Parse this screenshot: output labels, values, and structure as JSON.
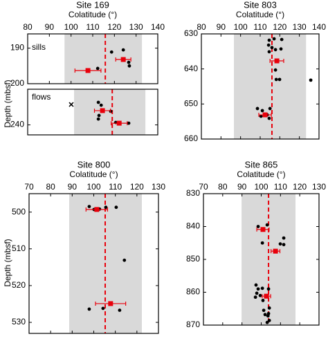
{
  "chart_data": [
    {
      "type": "scatter",
      "title": "Site 169",
      "xlabel": "Colatitude (°)",
      "ylabel": "Depth (mbsf)",
      "annotation": "sills",
      "xlim": [
        80,
        140
      ],
      "xticks": [
        80,
        90,
        100,
        110,
        120,
        130,
        140
      ],
      "ylim": [
        186,
        200
      ],
      "yticks": [
        190,
        200
      ],
      "band": [
        97,
        132.7
      ],
      "band_color": "#d9d9d9",
      "mean": 115.8,
      "mean_color": "#e8000b",
      "points": {
        "color": "#000000",
        "x": [
          118.7,
          124.1,
          126.6,
          126.9,
          112.3
        ],
        "y": [
          191.1,
          190.5,
          194,
          195,
          195.7
        ]
      },
      "means": {
        "color": "#e8000b",
        "x": [
          124.1,
          107.8
        ],
        "y": [
          193.2,
          196.3
        ],
        "xerr": [
          3.5,
          6
        ]
      }
    },
    {
      "type": "scatter",
      "annotation": "flows",
      "xlim": [
        80,
        140
      ],
      "ylim": [
        215,
        247
      ],
      "yticks": [
        240
      ],
      "band": [
        101.4,
        134.3
      ],
      "band_color": "#d9d9d9",
      "mean": 119,
      "mean_color": "#e8000b",
      "points": {
        "color": "#000000",
        "x": [
          112.6,
          113.9,
          112.9,
          112.6,
          118.3,
          120.6,
          126.6
        ],
        "y": [
          224.2,
          226.2,
          233.4,
          235.9,
          230.5,
          238.3,
          238.8
        ]
      },
      "means": {
        "color": "#e8000b",
        "x": [
          114.5,
          122.2
        ],
        "y": [
          230,
          238.8
        ],
        "xerr": [
          3.7,
          3.7
        ]
      },
      "crosses": {
        "color": "#000000",
        "x": [
          100.1
        ],
        "y": [
          225.7
        ]
      }
    },
    {
      "type": "scatter",
      "title": "Site 803",
      "xlabel": "Colatitude (°)",
      "xlim": [
        80,
        140
      ],
      "xticks": [
        80,
        90,
        100,
        110,
        120,
        130,
        140
      ],
      "ylim": [
        630,
        660
      ],
      "yticks": [
        630,
        640,
        650,
        660
      ],
      "band": [
        96.6,
        133.4
      ],
      "band_color": "#d9d9d9",
      "mean": 116,
      "mean_color": "#e8000b",
      "points": {
        "color": "#000000",
        "x": [
          114.6,
          117.1,
          121.0,
          114.3,
          116.0,
          117.8,
          120.6,
          114.6,
          117.8,
          118.2,
          119.9,
          135.8,
          108.6,
          111.1,
          115.0,
          113.6,
          110.4,
          114.6
        ],
        "y": [
          631.8,
          631.4,
          631.6,
          633.2,
          633.9,
          634.5,
          634.3,
          635.1,
          640.3,
          643.0,
          643.0,
          643.2,
          651.3,
          651.9,
          651.3,
          653.1,
          653.5,
          654.1
        ]
      },
      "means": {
        "color": "#e8000b",
        "x": [
          118.5,
          112.5
        ],
        "y": [
          637.7,
          653.1
        ],
        "xerr": [
          3.5,
          3.2
        ]
      }
    },
    {
      "type": "scatter",
      "title": "Site 800",
      "xlabel": "Colatitude (°)",
      "ylabel": "Depth (mbsf)",
      "xlim": [
        70,
        130
      ],
      "xticks": [
        70,
        80,
        90,
        100,
        110,
        120,
        130
      ],
      "ylim": [
        495,
        533
      ],
      "yticks": [
        500,
        510,
        520,
        530
      ],
      "band": [
        88.6,
        122.3
      ],
      "band_color": "#d9d9d9",
      "mean": 105.3,
      "mean_color": "#e8000b",
      "points": {
        "color": "#000000",
        "x": [
          97.9,
          100.1,
          102.7,
          105.6,
          110.4,
          114.2,
          97.9,
          104.3,
          112.0
        ],
        "y": [
          498.5,
          499.3,
          499.2,
          498.7,
          498.7,
          513.1,
          526.4,
          526.2,
          526.7
        ]
      },
      "means": {
        "color": "#e8000b",
        "x": [
          101.4,
          107.8
        ],
        "y": [
          499.3,
          524.9
        ],
        "xerr": [
          5,
          7
        ]
      }
    },
    {
      "type": "scatter",
      "title": "Site 865",
      "xlabel": "Colatitude (°)",
      "xlim": [
        70,
        130
      ],
      "xticks": [
        70,
        80,
        90,
        100,
        110,
        120,
        130
      ],
      "ylim": [
        830,
        870
      ],
      "yticks": [
        830,
        840,
        850,
        860,
        870
      ],
      "band": [
        89.8,
        117.8
      ],
      "band_color": "#d9d9d9",
      "mean": 103.8,
      "mean_color": "#e8000b",
      "points": {
        "color": "#000000",
        "x": [
          98.4,
          103.1,
          111.7,
          109.9,
          111.7,
          100.6,
          97.3,
          98.4,
          97.7,
          97.0,
          100.6,
          99.5,
          100.9,
          103.8,
          101.3,
          104.2,
          102.0,
          103.8,
          103.5,
          104.2,
          103.1
        ],
        "y": [
          840,
          839.5,
          843.5,
          845.3,
          845.5,
          845,
          857.8,
          859,
          860.3,
          861.5,
          858.8,
          861,
          862.5,
          859,
          865.5,
          864.8,
          866.8,
          866.5,
          867.2,
          868.6,
          869.2
        ]
      },
      "means": {
        "color": "#e8000b",
        "x": [
          100.9,
          107.4,
          102.7
        ],
        "y": [
          840.9,
          847.5,
          861.2
        ],
        "xerr": [
          3.2,
          2.3,
          2.2
        ]
      }
    }
  ]
}
